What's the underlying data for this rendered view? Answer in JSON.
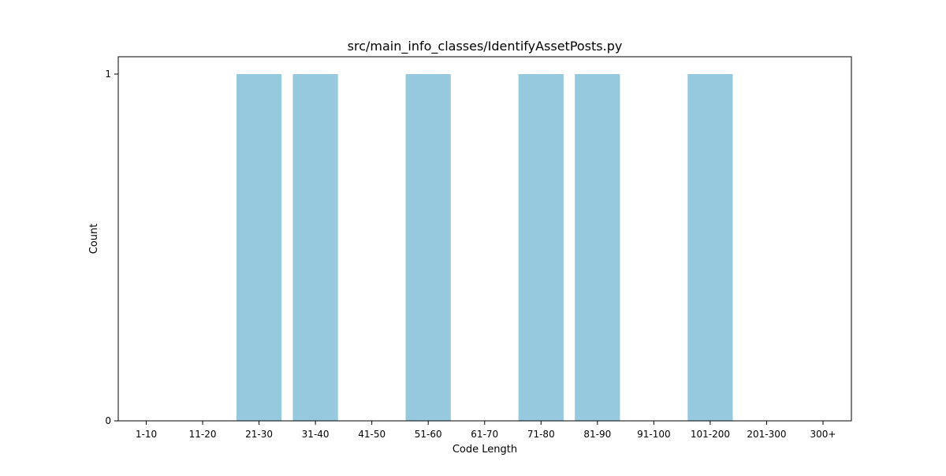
{
  "chart_data": {
    "type": "bar",
    "title": "src/main_info_classes/IdentifyAssetPosts.py",
    "xlabel": "Code Length",
    "ylabel": "Count",
    "categories": [
      "1-10",
      "11-20",
      "21-30",
      "31-40",
      "41-50",
      "51-60",
      "61-70",
      "71-80",
      "81-90",
      "91-100",
      "101-200",
      "201-300",
      "300+"
    ],
    "values": [
      0,
      0,
      1,
      1,
      0,
      1,
      0,
      1,
      1,
      0,
      1,
      0,
      0
    ],
    "yticks": [
      "0",
      "1"
    ],
    "ylim": [
      0,
      1.05
    ],
    "bar_color": "#96c9de",
    "grid": false,
    "legend": false
  }
}
